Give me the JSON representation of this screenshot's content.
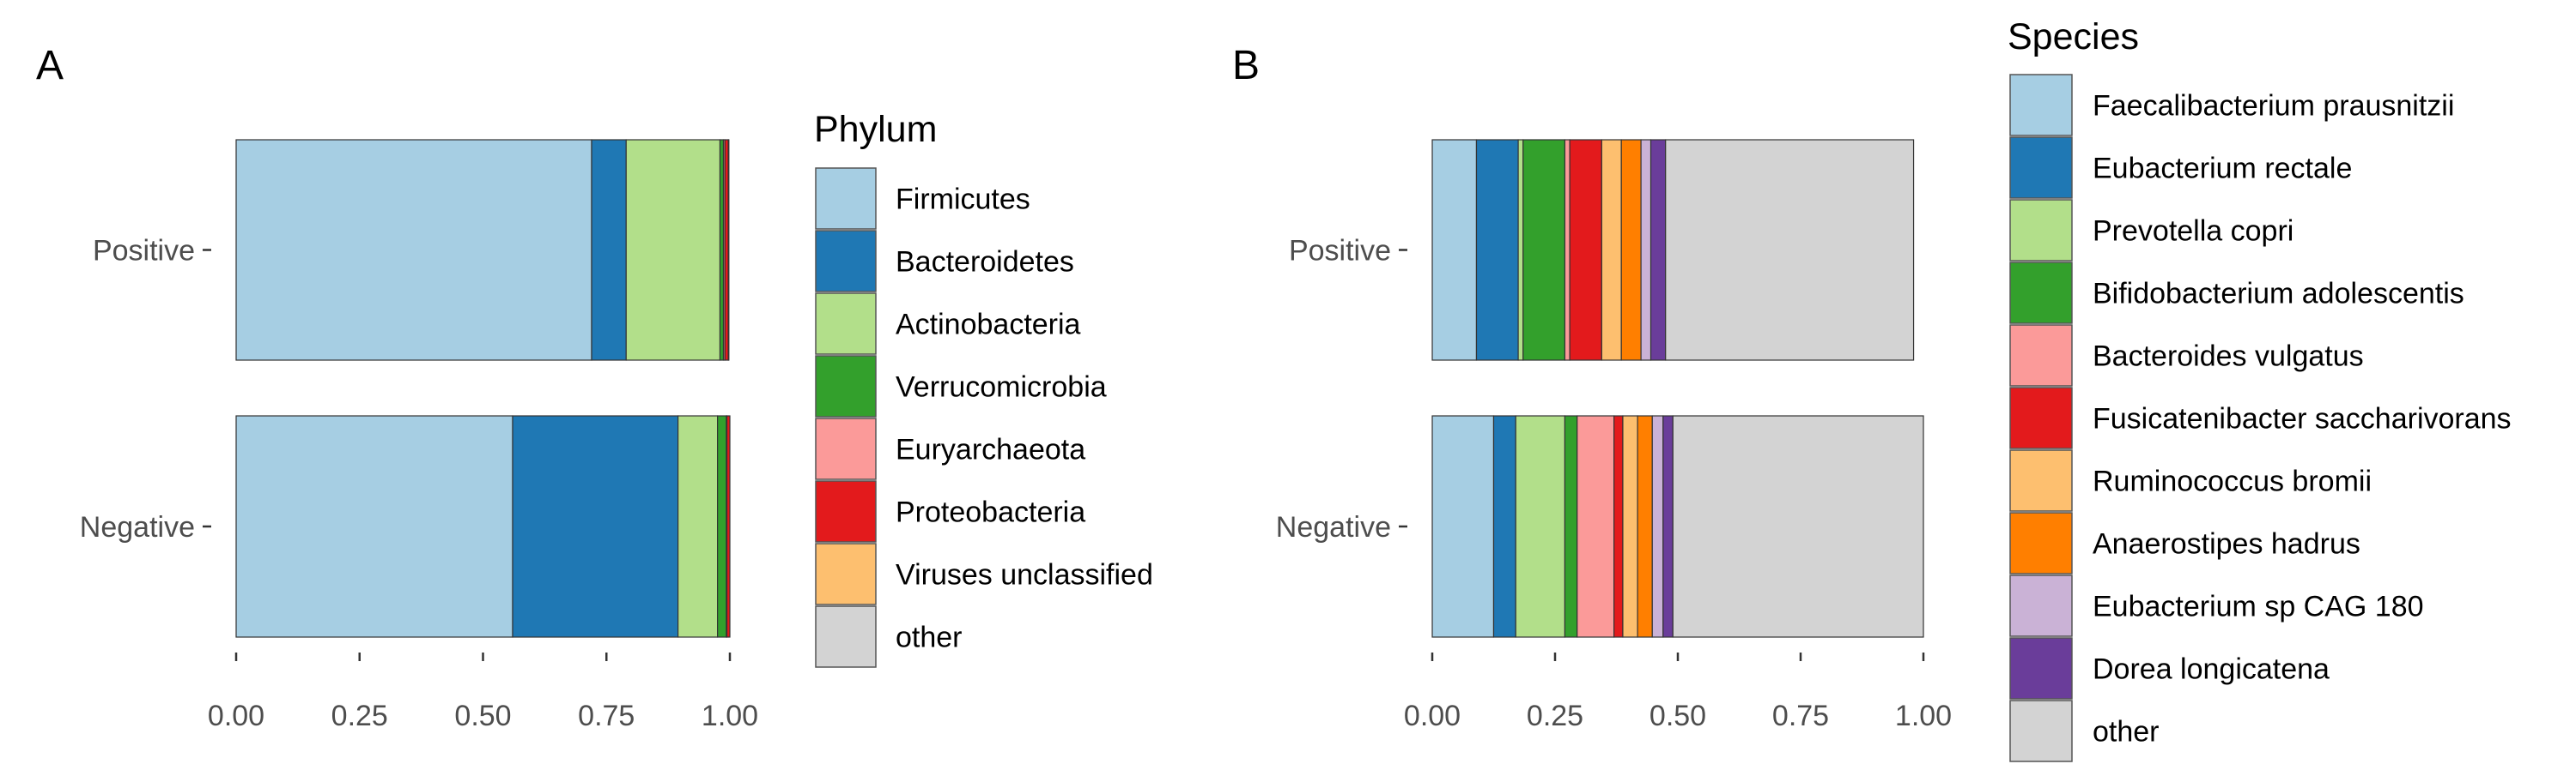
{
  "chart_data": [
    {
      "panel_tag": "A",
      "type": "bar",
      "orientation": "horizontal",
      "stacked": true,
      "categories": [
        "Positive",
        "Negative"
      ],
      "legend_title": "Phylum",
      "legend_position": "right",
      "xlim": [
        0,
        1
      ],
      "xticks": [
        "0.00",
        "0.25",
        "0.50",
        "0.75",
        "1.00"
      ],
      "grid": false,
      "series": [
        {
          "name": "Firmicutes",
          "color": "#a6cee3",
          "values": [
            0.72,
            0.56
          ]
        },
        {
          "name": "Bacteroidetes",
          "color": "#1f78b4",
          "values": [
            0.07,
            0.335
          ]
        },
        {
          "name": "Actinobacteria",
          "color": "#b2df8a",
          "values": [
            0.19,
            0.08
          ]
        },
        {
          "name": "Verrucomicrobia",
          "color": "#33a02c",
          "values": [
            0.007,
            0.018
          ]
        },
        {
          "name": "Euryarchaeota",
          "color": "#fb9a99",
          "values": [
            0.003,
            0.001
          ]
        },
        {
          "name": "Proteobacteria",
          "color": "#e31a1c",
          "values": [
            0.007,
            0.006
          ]
        },
        {
          "name": "Viruses unclassified",
          "color": "#fdbf6f",
          "values": [
            0.001,
            0.0
          ]
        },
        {
          "name": "other",
          "color": "#d3d3d3",
          "values": [
            0.0,
            0.0
          ]
        }
      ]
    },
    {
      "panel_tag": "B",
      "type": "bar",
      "orientation": "horizontal",
      "stacked": true,
      "categories": [
        "Positive",
        "Negative"
      ],
      "legend_title": "Species",
      "legend_position": "right",
      "xlim": [
        0,
        1
      ],
      "xticks": [
        "0.00",
        "0.25",
        "0.50",
        "0.75",
        "1.00"
      ],
      "grid": false,
      "series": [
        {
          "name": "Faecalibacterium prausnitzii",
          "color": "#a6cee3",
          "values": [
            0.09,
            0.125
          ]
        },
        {
          "name": "Eubacterium rectale",
          "color": "#1f78b4",
          "values": [
            0.085,
            0.045
          ]
        },
        {
          "name": "Prevotella copri",
          "color": "#b2df8a",
          "values": [
            0.01,
            0.1
          ]
        },
        {
          "name": "Bifidobacterium adolescentis",
          "color": "#33a02c",
          "values": [
            0.085,
            0.025
          ]
        },
        {
          "name": "Bacteroides vulgatus",
          "color": "#fb9a99",
          "values": [
            0.01,
            0.075
          ]
        },
        {
          "name": "Fusicatenibacter saccharivorans",
          "color": "#e31a1c",
          "values": [
            0.065,
            0.018
          ]
        },
        {
          "name": "Ruminococcus bromii",
          "color": "#fdbf6f",
          "values": [
            0.04,
            0.03
          ]
        },
        {
          "name": "Anaerostipes hadrus",
          "color": "#ff7f00",
          "values": [
            0.04,
            0.03
          ]
        },
        {
          "name": "Eubacterium sp CAG 180",
          "color": "#cab2d6",
          "values": [
            0.02,
            0.022
          ]
        },
        {
          "name": "Dorea longicatena",
          "color": "#6a3d9a",
          "values": [
            0.03,
            0.02
          ]
        },
        {
          "name": "other",
          "color": "#d3d3d3",
          "values": [
            0.505,
            0.51
          ]
        }
      ]
    }
  ]
}
